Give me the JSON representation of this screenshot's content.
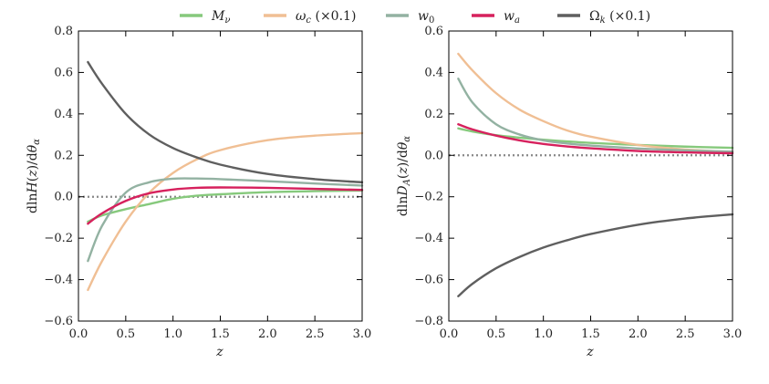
{
  "legend": [
    {
      "key": "M_nu",
      "label": "Mν",
      "color": "#86c97c"
    },
    {
      "key": "omega_c",
      "label": "ωc (×0.1)",
      "color": "#f0bf94"
    },
    {
      "key": "w0",
      "label": "w0",
      "color": "#93b2a2"
    },
    {
      "key": "wa",
      "label": "wa",
      "color": "#d6215d"
    },
    {
      "key": "Omega_k",
      "label": "Ωk (×0.1)",
      "color": "#5f5f5f"
    }
  ],
  "chart_data": [
    {
      "type": "line",
      "title": "",
      "xlabel": "z",
      "ylabel": "dlnH(z)/dθα",
      "xlim": [
        0.0,
        3.0
      ],
      "ylim": [
        -0.6,
        0.8
      ],
      "xticks": [
        "0.0",
        "0.5",
        "1.0",
        "1.5",
        "2.0",
        "2.5",
        "3.0"
      ],
      "yticks": [
        "−0.6",
        "−0.4",
        "−0.2",
        "0.0",
        "0.2",
        "0.4",
        "0.6",
        "0.8"
      ],
      "xtick_values": [
        0.0,
        0.5,
        1.0,
        1.5,
        2.0,
        2.5,
        3.0
      ],
      "ytick_values": [
        -0.6,
        -0.4,
        -0.2,
        0.0,
        0.2,
        0.4,
        0.6,
        0.8
      ],
      "x": [
        0.1,
        0.25,
        0.5,
        0.75,
        1.0,
        1.25,
        1.5,
        2.0,
        2.5,
        3.0
      ],
      "series": [
        {
          "name": "M_nu",
          "color": "#86c97c",
          "values": [
            -0.12,
            -0.09,
            -0.06,
            -0.035,
            -0.01,
            0.005,
            0.012,
            0.022,
            0.027,
            0.03
          ]
        },
        {
          "name": "omega_c",
          "color": "#f0bf94",
          "values": [
            -0.45,
            -0.31,
            -0.12,
            0.02,
            0.115,
            0.18,
            0.225,
            0.273,
            0.295,
            0.307
          ]
        },
        {
          "name": "w0",
          "color": "#93b2a2",
          "values": [
            -0.31,
            -0.14,
            0.02,
            0.07,
            0.087,
            0.088,
            0.085,
            0.075,
            0.064,
            0.054
          ]
        },
        {
          "name": "wa",
          "color": "#d6215d",
          "values": [
            -0.13,
            -0.08,
            -0.02,
            0.017,
            0.035,
            0.043,
            0.045,
            0.043,
            0.038,
            0.033
          ]
        },
        {
          "name": "Omega_k",
          "color": "#5f5f5f",
          "values": [
            0.65,
            0.545,
            0.4,
            0.3,
            0.235,
            0.19,
            0.155,
            0.11,
            0.085,
            0.07
          ]
        }
      ]
    },
    {
      "type": "line",
      "title": "",
      "xlabel": "z",
      "ylabel": "dlnDA(z)/dθα",
      "xlim": [
        0.0,
        3.0
      ],
      "ylim": [
        -0.8,
        0.6
      ],
      "xticks": [
        "0.0",
        "0.5",
        "1.0",
        "1.5",
        "2.0",
        "2.5",
        "3.0"
      ],
      "yticks": [
        "−0.8",
        "−0.6",
        "−0.4",
        "−0.2",
        "0.0",
        "0.2",
        "0.4",
        "0.6"
      ],
      "xtick_values": [
        0.0,
        0.5,
        1.0,
        1.5,
        2.0,
        2.5,
        3.0
      ],
      "ytick_values": [
        -0.8,
        -0.6,
        -0.4,
        -0.2,
        0.0,
        0.2,
        0.4,
        0.6
      ],
      "x": [
        0.1,
        0.25,
        0.5,
        0.75,
        1.0,
        1.25,
        1.5,
        2.0,
        2.5,
        3.0
      ],
      "series": [
        {
          "name": "M_nu",
          "color": "#86c97c",
          "values": [
            0.13,
            0.115,
            0.097,
            0.085,
            0.075,
            0.067,
            0.06,
            0.05,
            0.042,
            0.036
          ]
        },
        {
          "name": "omega_c",
          "color": "#f0bf94",
          "values": [
            0.49,
            0.41,
            0.3,
            0.22,
            0.165,
            0.12,
            0.09,
            0.05,
            0.028,
            0.016
          ]
        },
        {
          "name": "w0",
          "color": "#93b2a2",
          "values": [
            0.37,
            0.255,
            0.15,
            0.1,
            0.072,
            0.057,
            0.047,
            0.033,
            0.024,
            0.018
          ]
        },
        {
          "name": "wa",
          "color": "#d6215d",
          "values": [
            0.15,
            0.125,
            0.095,
            0.072,
            0.055,
            0.043,
            0.034,
            0.021,
            0.014,
            0.01
          ]
        },
        {
          "name": "Omega_k",
          "color": "#5f5f5f",
          "values": [
            -0.68,
            -0.62,
            -0.545,
            -0.49,
            -0.445,
            -0.41,
            -0.38,
            -0.335,
            -0.305,
            -0.285
          ]
        }
      ]
    }
  ]
}
